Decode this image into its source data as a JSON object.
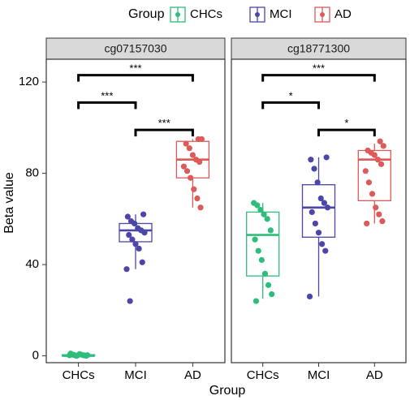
{
  "colors": {
    "CHCs": "#2ebd7a",
    "MCI": "#4b46a8",
    "AD": "#dc5a5a",
    "strip_fill": "#d9d9d9",
    "panel_border": "#333333"
  },
  "legend": {
    "title": "Group",
    "entries": [
      "CHCs",
      "MCI",
      "AD"
    ],
    "placement": "top"
  },
  "chart_data": {
    "type": "boxplot",
    "xlabel": "Group",
    "ylabel": "Beta value",
    "ylim": [
      -3,
      130
    ],
    "yticks": [
      0,
      40,
      80,
      120
    ],
    "grid": false,
    "categories": [
      "CHCs",
      "MCI",
      "AD"
    ],
    "panels": [
      {
        "title": "cg07157030",
        "boxes": [
          {
            "group": "CHCs",
            "min": 0,
            "q1": 0,
            "median": 0,
            "q3": 0.5,
            "max": 1,
            "points": [
              0.2,
              0.5,
              0,
              0.8,
              0.3,
              0,
              1,
              0.4,
              0.1,
              0.6,
              0.2,
              0.3
            ]
          },
          {
            "group": "MCI",
            "min": 38,
            "q1": 50,
            "median": 55,
            "q3": 58,
            "max": 62,
            "points": [
              62,
              61,
              59,
              58,
              56,
              55,
              54,
              53,
              51,
              49,
              47,
              41,
              38,
              24
            ]
          },
          {
            "group": "AD",
            "min": 65,
            "q1": 78,
            "median": 86,
            "q3": 94,
            "max": 95,
            "points": [
              95,
              95,
              93,
              91,
              88,
              86,
              85,
              83,
              81,
              78,
              73,
              69,
              65
            ]
          }
        ],
        "comparisons": [
          {
            "from": "CHCs",
            "to": "MCI",
            "y": 111,
            "label": "***"
          },
          {
            "from": "MCI",
            "to": "AD",
            "y": 99,
            "label": "***"
          },
          {
            "from": "CHCs",
            "to": "AD",
            "y": 123,
            "label": "***"
          }
        ]
      },
      {
        "title": "cg18771300",
        "boxes": [
          {
            "group": "CHCs",
            "min": 25,
            "q1": 35,
            "median": 53,
            "q3": 63,
            "max": 67,
            "points": [
              67,
              66,
              64,
              62,
              60,
              55,
              51,
              46,
              42,
              36,
              31,
              27,
              24
            ]
          },
          {
            "group": "MCI",
            "min": 26,
            "q1": 52,
            "median": 65,
            "q3": 75,
            "max": 87,
            "points": [
              87,
              86,
              82,
              76,
              69,
              67,
              65,
              63,
              58,
              54,
              49,
              46,
              26
            ]
          },
          {
            "group": "AD",
            "min": 58,
            "q1": 68,
            "median": 86,
            "q3": 90,
            "max": 93,
            "points": [
              94,
              92,
              90,
              89,
              88,
              86,
              84,
              81,
              76,
              71,
              65,
              62,
              59,
              58
            ]
          }
        ],
        "comparisons": [
          {
            "from": "CHCs",
            "to": "MCI",
            "y": 111,
            "label": "*"
          },
          {
            "from": "MCI",
            "to": "AD",
            "y": 99,
            "label": "*"
          },
          {
            "from": "CHCs",
            "to": "AD",
            "y": 123,
            "label": "***"
          }
        ]
      }
    ]
  }
}
